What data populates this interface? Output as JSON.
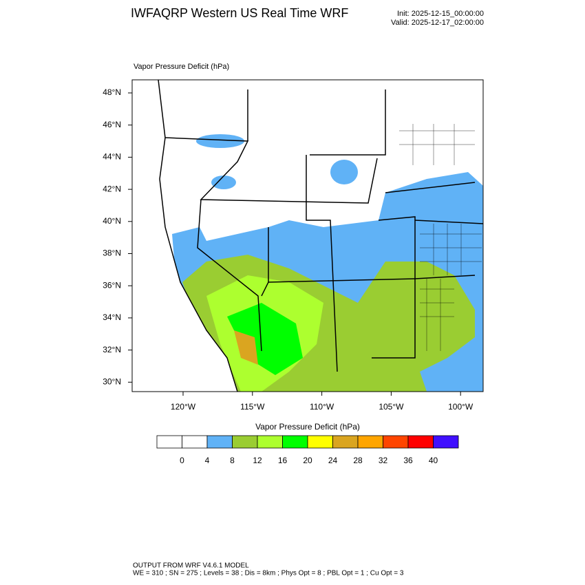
{
  "header": {
    "title": "IWFAQRP Western US Real Time WRF",
    "init": "Init: 2025-12-15_00:00:00",
    "valid": "Valid: 2025-12-17_02:00:00"
  },
  "map": {
    "title": "Vapor Pressure Deficit   (hPa)",
    "lat_labels": [
      "48°N",
      "46°N",
      "44°N",
      "42°N",
      "40°N",
      "38°N",
      "36°N",
      "34°N",
      "32°N",
      "30°N"
    ],
    "lon_labels": [
      "120°W",
      "115°W",
      "110°W",
      "105°W",
      "100°W"
    ]
  },
  "colorbar": {
    "title": "Vapor Pressure Deficit  (hPa)",
    "colors": [
      "#ffffff",
      "#ffffff",
      "#60b2f6",
      "#9acd32",
      "#adff2f",
      "#00ff00",
      "#ffff00",
      "#daa520",
      "#ffa500",
      "#ff4500",
      "#ff0000",
      "#4010ff"
    ],
    "labels": [
      0,
      4,
      8,
      12,
      16,
      20,
      24,
      28,
      32,
      36,
      40
    ]
  },
  "footer": {
    "line1": "OUTPUT FROM WRF V4.6.1 MODEL",
    "line2": "WE = 310 ; SN = 275 ; Levels = 38 ; Dis = 8km ; Phys Opt = 8 ; PBL Opt = 1 ; Cu Opt = 3"
  }
}
